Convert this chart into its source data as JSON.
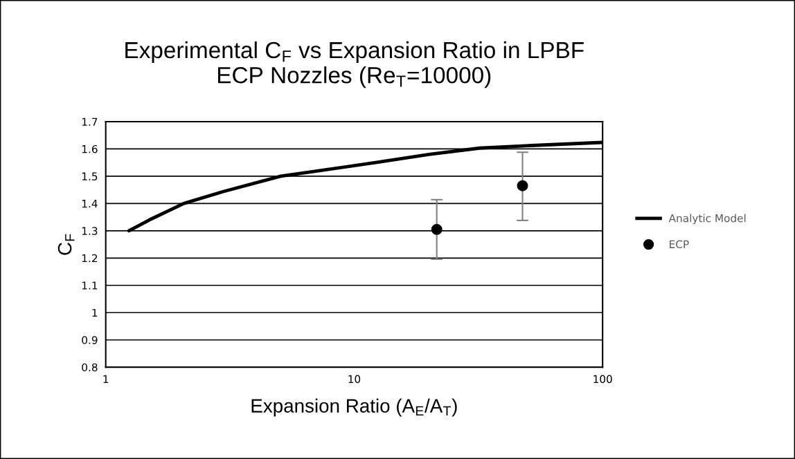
{
  "chart_data": {
    "type": "line",
    "title": "Experimental C$_{F}$ vs Expansion Ratio in LPBF\nECP Nozzles (Re$_{T}$=10000)",
    "xlabel": "Expansion Ratio (A$_{E}$/A$_{T}$)",
    "ylabel": "C$_{F}$",
    "series": [
      {
        "name": "Analytic Model",
        "color": "#000000",
        "x": [
          1.24,
          1.5,
          2.06,
          2.98,
          5.06,
          12.2,
          20,
          32,
          47.6,
          100
        ],
        "values": [
          1.3,
          1.34,
          1.4,
          1.444,
          1.5,
          1.55,
          1.58,
          1.603,
          1.611,
          1.624
        ],
        "marker": "none"
      },
      {
        "name": "ECP",
        "type": "scatter",
        "color": "#000000",
        "x": [
          21.5,
          47.6
        ],
        "values": [
          1.305,
          1.465
        ],
        "errors": [
          [
            1.196,
            1.414
          ],
          [
            1.338,
            1.588
          ]
        ],
        "marker": "circle"
      }
    ],
    "log": "x",
    "xlim": [
      1,
      100
    ],
    "xticks": [
      1,
      10,
      100
    ],
    "ylim": [
      0.8,
      1.7
    ],
    "yticks": [
      0.8,
      0.9,
      1,
      1.1,
      1.2,
      1.3,
      1.4,
      1.5,
      1.6,
      1.7
    ],
    "grid": "y",
    "legend": "right"
  }
}
